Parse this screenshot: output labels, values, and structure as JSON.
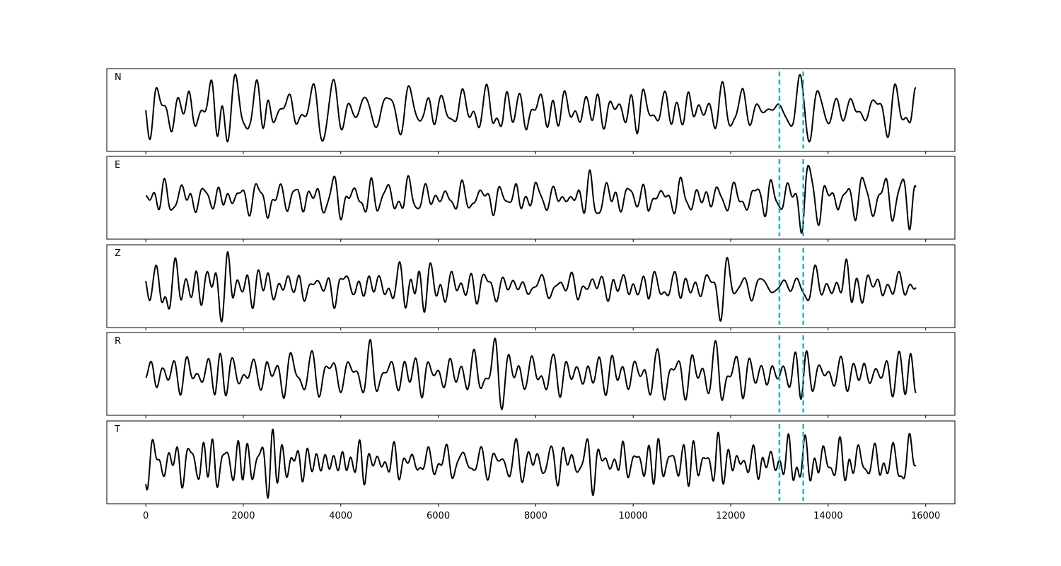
{
  "chart_data": {
    "type": "line",
    "title": "",
    "xlabel": "",
    "ylabel": "",
    "xlim": [
      -800,
      16600
    ],
    "x_ticks": [
      0,
      2000,
      4000,
      6000,
      8000,
      10000,
      12000,
      14000,
      16000
    ],
    "x_tick_labels": [
      "0",
      "2000",
      "4000",
      "6000",
      "8000",
      "10000",
      "12000",
      "14000",
      "16000"
    ],
    "x_start": 0,
    "x_end": 15800,
    "y_ticks_shown": false,
    "markers": {
      "x": [
        13000,
        13490
      ],
      "color": "#17becf",
      "style": "dashed"
    },
    "line_color": "#000000",
    "panels": [
      {
        "label": "N",
        "seed": 11,
        "bursts": [
          {
            "x": 1500,
            "amp": 0.85
          },
          {
            "x": 2450,
            "amp": 0.75
          },
          {
            "x": 7300,
            "amp": 0.8
          },
          {
            "x": 11150,
            "amp": 0.75
          },
          {
            "x": 13300,
            "amp": 1.0
          },
          {
            "x": 15750,
            "amp": 1.0
          }
        ]
      },
      {
        "label": "E",
        "seed": 23,
        "bursts": [
          {
            "x": 2500,
            "amp": 0.6
          },
          {
            "x": 4450,
            "amp": 0.65
          },
          {
            "x": 9150,
            "amp": 0.8
          },
          {
            "x": 13550,
            "amp": 0.85
          },
          {
            "x": 15700,
            "amp": 1.0
          }
        ]
      },
      {
        "label": "Z",
        "seed": 37,
        "bursts": [
          {
            "x": 450,
            "amp": 0.55
          },
          {
            "x": 1650,
            "amp": 0.55
          },
          {
            "x": 3900,
            "amp": 0.7
          },
          {
            "x": 5600,
            "amp": 0.9
          },
          {
            "x": 11850,
            "amp": 0.65
          },
          {
            "x": 14400,
            "amp": 1.0
          }
        ]
      },
      {
        "label": "R",
        "seed": 53,
        "bursts": [
          {
            "x": 1550,
            "amp": 0.65
          },
          {
            "x": 7200,
            "amp": 0.75
          },
          {
            "x": 11850,
            "amp": 0.7
          },
          {
            "x": 13450,
            "amp": 1.0
          },
          {
            "x": 15700,
            "amp": 1.0
          }
        ]
      },
      {
        "label": "T",
        "seed": 71,
        "bursts": [
          {
            "x": 2550,
            "amp": 0.75
          },
          {
            "x": 4450,
            "amp": 0.65
          },
          {
            "x": 9150,
            "amp": 0.55
          },
          {
            "x": 13250,
            "amp": 0.55
          },
          {
            "x": 15650,
            "amp": 1.0
          }
        ]
      }
    ]
  }
}
